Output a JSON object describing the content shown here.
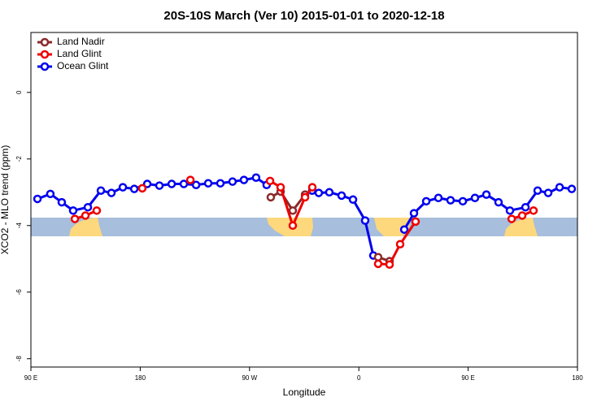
{
  "chart_data": {
    "type": "line",
    "title": "20S-10S March (Ver 10)   2015-01-01 to 2020-12-18",
    "x_label": "Longitude",
    "y_label": "XCO2 - MLO trend (ppm)",
    "xlim": [
      90,
      540
    ],
    "xticks": [
      {
        "value": 90,
        "label": "90 E"
      },
      180,
      {
        "value": 270,
        "label": "90 W"
      },
      {
        "value": 360,
        "label": "0"
      },
      {
        "value": 450,
        "label": "90 E"
      },
      {
        "value": 540,
        "label": "180"
      }
    ],
    "ylim": [
      -8.25,
      1.8
    ],
    "yticks": [
      0,
      -2,
      -4,
      -6,
      -8
    ],
    "legend": "top-left",
    "series": [
      {
        "name": "Land Nadir",
        "color": "#8b2a2a",
        "x": [
          287.5,
          295.6,
          305.6,
          315.7,
          null,
          375.9,
          385.3
        ],
        "values": [
          -3.15,
          -2.98,
          -3.55,
          -3.07,
          null,
          -4.95,
          -5.07
        ]
      },
      {
        "name": "Land Glint",
        "color": "#ee0000",
        "x": [
          126.2,
          134.9,
          144.2,
          null,
          181.7,
          null,
          221.3,
          null,
          286.9,
          295.6,
          305.6,
          315.7,
          321.7,
          null,
          375.9,
          385.3,
          394,
          406.7,
          null,
          485.8,
          494.5,
          503.8
        ],
        "values": [
          -3.8,
          -3.7,
          -3.55,
          null,
          -2.88,
          null,
          -2.63,
          null,
          -2.66,
          -2.85,
          -4.0,
          -3.15,
          -2.85,
          null,
          -5.15,
          -5.17,
          -4.56,
          -3.88,
          null,
          -3.8,
          -3.7,
          -3.55
        ]
      },
      {
        "name": "Ocean Glint",
        "color": "#0000ee",
        "x": [
          95.4,
          106,
          115.4,
          124.8,
          136.9,
          147.6,
          156.3,
          165.7,
          175.1,
          185.8,
          195.8,
          205.9,
          215.9,
          226,
          236,
          246,
          256,
          265.4,
          275.4,
          284.1,
          null,
          321.6,
          327,
          335.7,
          345.8,
          355.2,
          365.2,
          371.9,
          null,
          397.4,
          405.4,
          415.5,
          425.5,
          435.5,
          445.6,
          455.6,
          465,
          475,
          484.4,
          497.2,
          507.2,
          515.9,
          525.3,
          535.3
        ],
        "values": [
          -3.2,
          -3.05,
          -3.3,
          -3.55,
          -3.45,
          -2.95,
          -3.02,
          -2.85,
          -2.9,
          -2.75,
          -2.8,
          -2.75,
          -2.75,
          -2.78,
          -2.73,
          -2.73,
          -2.68,
          -2.63,
          -2.56,
          -2.78,
          null,
          -2.95,
          -3.02,
          -3.0,
          -3.1,
          -3.22,
          -3.85,
          -4.9,
          null,
          -4.12,
          -3.63,
          -3.27,
          -3.17,
          -3.24,
          -3.27,
          -3.17,
          -3.07,
          -3.3,
          -3.55,
          -3.45,
          -2.95,
          -3.02,
          -2.85,
          -2.9
        ]
      }
    ]
  }
}
